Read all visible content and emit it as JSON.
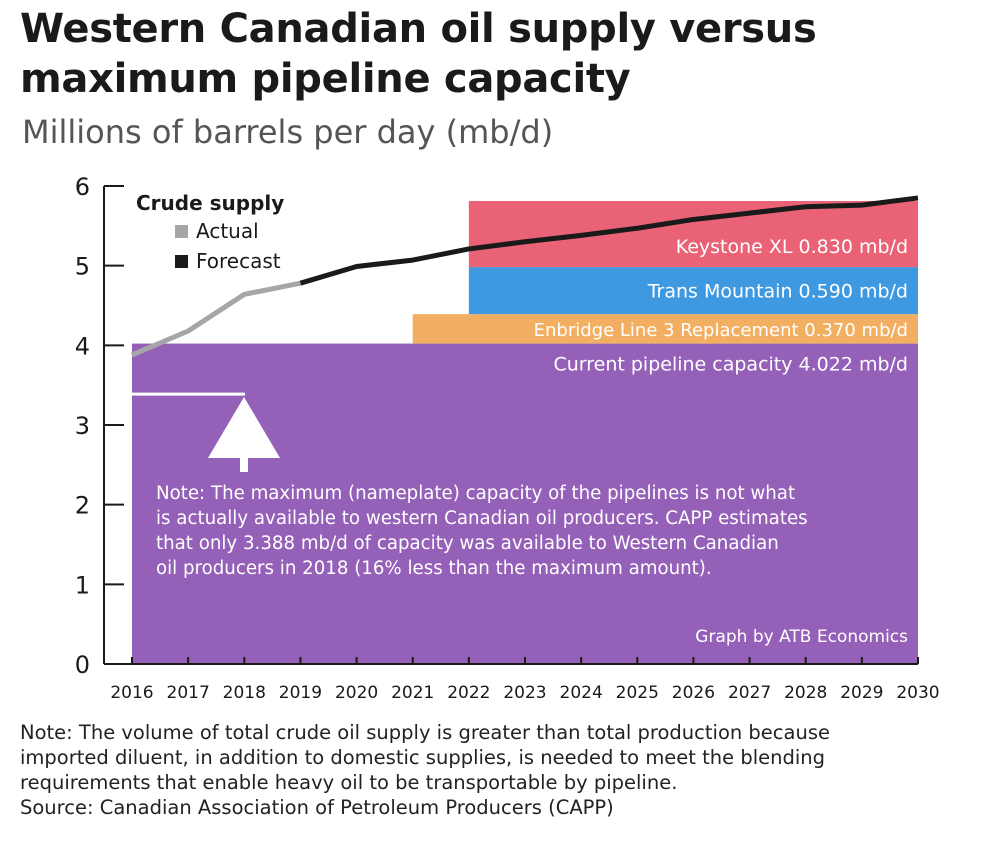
{
  "chart_data": {
    "type": "area",
    "title": "Western Canadian oil supply versus maximum pipeline capacity",
    "subtitle": "Millions of barrels per day (mb/d)",
    "x": [
      2016,
      2017,
      2018,
      2019,
      2020,
      2021,
      2022,
      2023,
      2024,
      2025,
      2026,
      2027,
      2028,
      2029,
      2030
    ],
    "xlim": [
      2016,
      2030
    ],
    "ylim": [
      0,
      6
    ],
    "yticks": [
      "0",
      "1",
      "2",
      "3",
      "4",
      "5",
      "6"
    ],
    "legend": {
      "title": "Crude supply",
      "placement": "top-left",
      "items": [
        {
          "label": "Actual",
          "color": "#a6a6a8"
        },
        {
          "label": "Forecast",
          "color": "#1a1a1a"
        }
      ]
    },
    "series": [
      {
        "name": "Actual",
        "x": [
          2016,
          2017,
          2018,
          2019
        ],
        "values": [
          3.88,
          4.18,
          4.64,
          4.78
        ],
        "color": "#a6a6a8"
      },
      {
        "name": "Forecast",
        "x": [
          2019,
          2020,
          2021,
          2022,
          2023,
          2024,
          2025,
          2026,
          2027,
          2028,
          2029,
          2030
        ],
        "values": [
          4.78,
          4.99,
          5.07,
          5.21,
          5.3,
          5.38,
          5.47,
          5.58,
          5.66,
          5.74,
          5.76,
          5.85
        ],
        "color": "#1a1a1a"
      }
    ],
    "capacity_layers": [
      {
        "label": "Current pipeline capacity 4.022 mb/d",
        "from_year": 2016,
        "to_year": 2030,
        "bottom": 0,
        "top": 4.022,
        "color": "#9560b8"
      },
      {
        "label": "Enbridge Line 3 Replacement 0.370 mb/d",
        "from_year": 2021,
        "to_year": 2030,
        "bottom": 4.022,
        "top": 4.392,
        "color": "#f3af61"
      },
      {
        "label": "Trans Mountain 0.590 mb/d",
        "from_year": 2022,
        "to_year": 2030,
        "bottom": 4.392,
        "top": 4.982,
        "color": "#3f99e0"
      },
      {
        "label": "Keystone XL 0.830 mb/d",
        "from_year": 2022,
        "to_year": 2030,
        "bottom": 4.982,
        "top": 5.812,
        "color": "#ea6275"
      }
    ],
    "available_capacity_2018": 3.388,
    "annotation_lines": [
      "Note: The maximum (nameplate) capacity of the pipelines is not what",
      "is actually available to western Canadian oil producers. CAPP estimates",
      "that only 3.388 mb/d of capacity was available to Western Canadian",
      "oil producers in 2018 (16% less than the maximum amount)."
    ],
    "credit": "Graph by ATB Economics"
  },
  "footnote": {
    "line1": "Note: The volume of total crude oil supply is greater than total production because",
    "line2": "imported diluent, in addition to domestic supplies, is needed to meet the blending",
    "line3": "requirements that enable heavy oil to be transportable by pipeline.",
    "source": "Source: Canadian Association of Petroleum Producers (CAPP)"
  }
}
